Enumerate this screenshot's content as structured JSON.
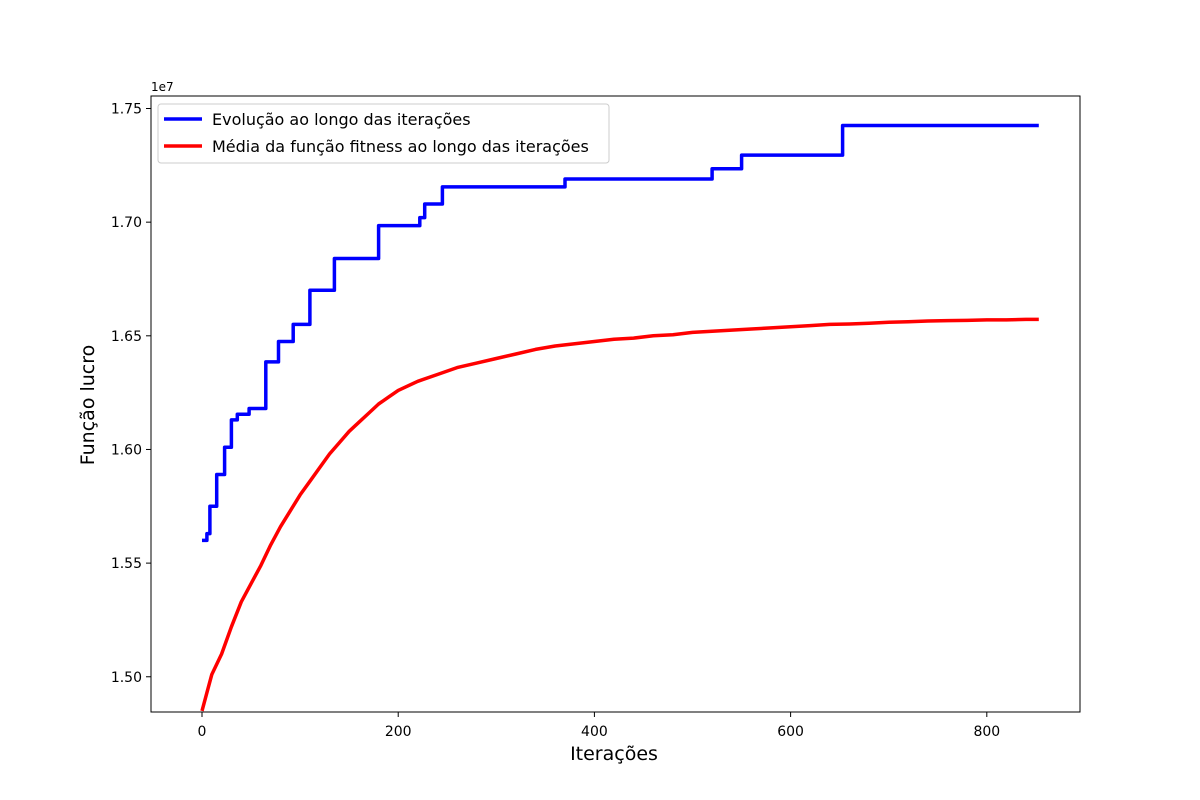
{
  "chart_data": {
    "type": "line",
    "title": "",
    "xlabel": "Iterações",
    "ylabel": "Função lucro",
    "y_offset_label": "1e7",
    "xlim": [
      -52,
      895
    ],
    "ylim": [
      1.4845,
      1.7555
    ],
    "x_ticks": [
      0,
      200,
      400,
      600,
      800
    ],
    "y_ticks": [
      1.5,
      1.55,
      1.6,
      1.65,
      1.7,
      1.75
    ],
    "y_tick_labels": [
      "1.50",
      "1.55",
      "1.60",
      "1.65",
      "1.70",
      "1.75"
    ],
    "grid": false,
    "legend_position": "upper-left",
    "series": [
      {
        "name": "Evolução ao longo das iterações",
        "color": "#0000ff",
        "step": true,
        "x": [
          0,
          5,
          8,
          15,
          23,
          30,
          36,
          48,
          65,
          78,
          85,
          93,
          110,
          135,
          180,
          222,
          227,
          245,
          370,
          520,
          550,
          653,
          853
        ],
        "y": [
          1.56,
          1.563,
          1.575,
          1.589,
          1.601,
          1.613,
          1.6155,
          1.618,
          1.6385,
          1.6475,
          1.6475,
          1.655,
          1.67,
          1.684,
          1.6985,
          1.702,
          1.708,
          1.7155,
          1.719,
          1.7235,
          1.7295,
          1.7425,
          1.7425
        ]
      },
      {
        "name": "Média da função fitness ao longo das iterações",
        "color": "#ff0000",
        "step": false,
        "x": [
          0,
          5,
          10,
          20,
          30,
          40,
          50,
          60,
          70,
          80,
          90,
          100,
          110,
          120,
          130,
          140,
          150,
          160,
          170,
          180,
          190,
          200,
          220,
          240,
          260,
          280,
          300,
          320,
          340,
          360,
          380,
          400,
          420,
          440,
          460,
          480,
          500,
          520,
          540,
          560,
          580,
          600,
          620,
          640,
          660,
          680,
          700,
          720,
          740,
          760,
          780,
          800,
          820,
          840,
          853
        ],
        "y": [
          1.485,
          1.493,
          1.501,
          1.51,
          1.522,
          1.533,
          1.541,
          1.549,
          1.558,
          1.566,
          1.573,
          1.58,
          1.586,
          1.592,
          1.598,
          1.603,
          1.608,
          1.612,
          1.616,
          1.62,
          1.623,
          1.626,
          1.63,
          1.633,
          1.636,
          1.638,
          1.64,
          1.642,
          1.644,
          1.6455,
          1.6465,
          1.6475,
          1.6485,
          1.649,
          1.65,
          1.6505,
          1.6515,
          1.652,
          1.6525,
          1.653,
          1.6535,
          1.654,
          1.6545,
          1.655,
          1.6552,
          1.6555,
          1.656,
          1.6562,
          1.6565,
          1.6567,
          1.6568,
          1.657,
          1.657,
          1.6572,
          1.6572
        ]
      }
    ]
  }
}
